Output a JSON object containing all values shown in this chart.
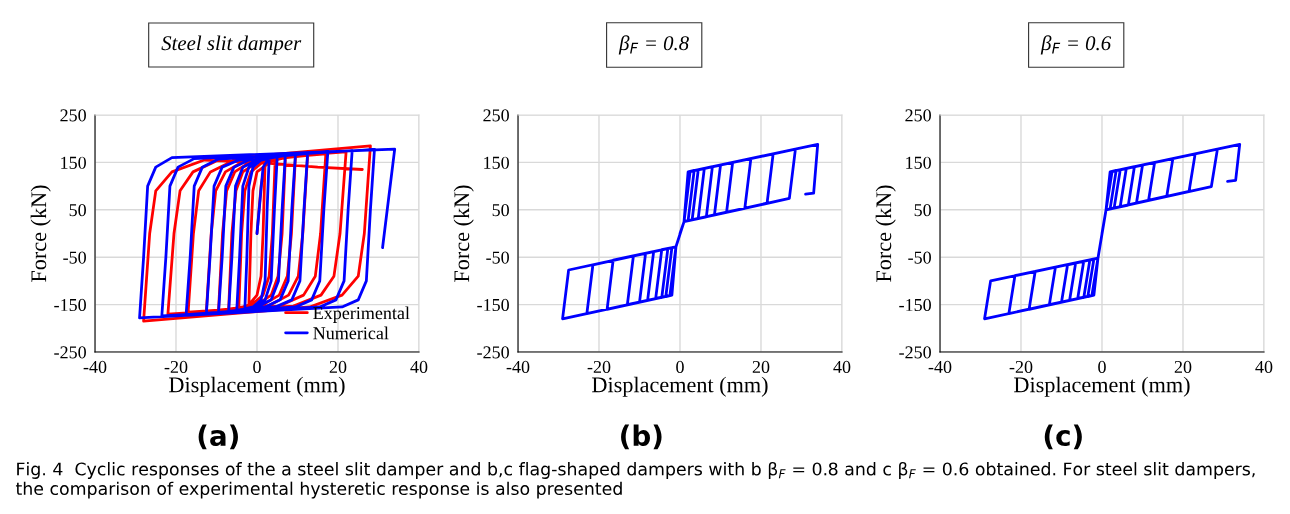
{
  "chart_data": [
    {
      "type": "line",
      "title": "Steel slit damper",
      "xlabel": "Displacement (mm)",
      "ylabel": "Force (kN)",
      "xlim": [
        -40,
        40
      ],
      "xticks": [
        -40,
        -20,
        0,
        20,
        40
      ],
      "ylim": [
        -250,
        250
      ],
      "yticks": [
        -250,
        -150,
        -50,
        50,
        150,
        250
      ],
      "grid": true,
      "legend": "bottom right",
      "line_style": "solid",
      "annotations": [
        "(a)",
        "Fig. 4  Cyclic responses of the a steel slit damper and b,c flag-shaped dampers with b β$_{F}$ = 0.8 and c β$_{F}$ = 0.6 obtained. For steel slit dampers, the comparison of experimental hysteretic response is also presented"
      ],
      "series": [
        {
          "name": "Experimental",
          "color": "#ff0000",
          "x": [
            0,
            1,
            2,
            1.5,
            1,
            0,
            -2,
            -1.5,
            -1,
            0,
            4.5,
            3.8,
            3,
            1.5,
            -1,
            -4.5,
            -3.8,
            -3,
            -1.5,
            1,
            7,
            6.2,
            5.2,
            3.5,
            0,
            -7,
            -6.2,
            -5.2,
            -3.5,
            0,
            9.5,
            8.5,
            7.5,
            5.5,
            1.5,
            -9.5,
            -8.5,
            -7.5,
            -5.5,
            -1.5,
            12.5,
            11.3,
            10.2,
            7.8,
            3,
            -12.5,
            -11.3,
            -10.2,
            -7.8,
            -3,
            17,
            15.7,
            14.4,
            11.5,
            5.5,
            -17,
            -15.7,
            -14.4,
            -11.5,
            -5.5,
            22,
            20.5,
            19,
            15.8,
            9,
            -22,
            -20.5,
            -19,
            -15.8,
            -9,
            28,
            26.5,
            25,
            21,
            13,
            -28,
            -26.5,
            -25,
            -21,
            -13,
            0,
            15,
            26
          ],
          "values": [
            0,
            100,
            150,
            0,
            -90,
            -130,
            -150,
            0,
            90,
            130,
            158,
            0,
            -90,
            -130,
            -148,
            -158,
            0,
            90,
            130,
            148,
            160,
            0,
            -90,
            -130,
            -150,
            -160,
            0,
            90,
            130,
            150,
            163,
            0,
            -90,
            -130,
            -150,
            -162,
            0,
            90,
            130,
            152,
            165,
            0,
            -90,
            -130,
            -152,
            -164,
            0,
            90,
            130,
            154,
            168,
            0,
            -90,
            -130,
            -153,
            -166,
            0,
            90,
            130,
            155,
            172,
            0,
            -90,
            -130,
            -153,
            -170,
            0,
            90,
            130,
            157,
            185,
            0,
            -90,
            -130,
            -155,
            -185,
            0,
            90,
            130,
            155,
            150,
            140,
            135
          ]
        },
        {
          "name": "Numerical",
          "color": "#0000ff",
          "x": [
            0,
            1.5,
            3,
            2.5,
            2,
            1,
            -1,
            -3,
            -2.5,
            -2,
            -1,
            1,
            5,
            4.3,
            3.5,
            2,
            -1,
            -5,
            -4.3,
            -3.5,
            -2,
            1,
            7,
            6.2,
            5.3,
            3.5,
            0,
            -7,
            -6.2,
            -5.3,
            -3.5,
            0,
            9.5,
            8.6,
            7.7,
            5.7,
            2,
            -9.5,
            -8.6,
            -7.7,
            -5.7,
            -2,
            12.5,
            11.6,
            10.6,
            8.6,
            4.5,
            -12.5,
            -11.6,
            -10.6,
            -8.6,
            -4.5,
            17.5,
            16.5,
            15.5,
            13.5,
            9.5,
            -17.5,
            -16.5,
            -15.5,
            -13.5,
            -9.5,
            23.5,
            22.5,
            21.5,
            19.5,
            15.5,
            -23.5,
            -22.5,
            -21.5,
            -19.5,
            -15.5,
            29,
            28,
            27,
            25,
            21,
            -29,
            -28,
            -27,
            -25,
            -21,
            34,
            31
          ],
          "values": [
            0,
            140,
            160,
            50,
            -100,
            -140,
            -155,
            -160,
            -50,
            100,
            140,
            155,
            163,
            50,
            -100,
            -140,
            -155,
            -163,
            -50,
            100,
            140,
            155,
            166,
            50,
            -100,
            -140,
            -155,
            -165,
            -50,
            100,
            140,
            155,
            168,
            50,
            -100,
            -140,
            -155,
            -167,
            -50,
            100,
            140,
            155,
            170,
            50,
            -100,
            -140,
            -155,
            -169,
            -50,
            100,
            140,
            155,
            173,
            50,
            -100,
            -140,
            -155,
            -171,
            -50,
            100,
            140,
            157,
            175,
            50,
            -100,
            -140,
            -155,
            -174,
            -50,
            100,
            140,
            158,
            177,
            50,
            -100,
            -140,
            -155,
            -178,
            -50,
            100,
            140,
            160,
            178,
            -30
          ]
        }
      ]
    },
    {
      "type": "line",
      "title": "β$_{F}$ = 0.8",
      "xlabel": "Displacement (mm)",
      "ylabel": "Force (kN)",
      "xlim": [
        -40,
        40
      ],
      "xticks": [
        -40,
        -20,
        0,
        20,
        40
      ],
      "ylim": [
        -250,
        250
      ],
      "yticks": [
        -250,
        -150,
        -50,
        50,
        150,
        250
      ],
      "grid": true,
      "line_style": "solid",
      "annotations": [
        "(b)"
      ],
      "series": [
        {
          "color": "#0000ff",
          "x": [
            0,
            1,
            2,
            2.5,
            1,
            1,
            -1,
            -2,
            -2.5,
            -1,
            -1,
            1,
            2,
            3.5,
            2,
            1,
            -1,
            -2,
            -3.5,
            -2,
            -1,
            1,
            2,
            4.5,
            3,
            1,
            -1,
            -2,
            -4.5,
            -3,
            -1,
            1,
            2,
            6,
            4.5,
            1,
            -1,
            -2,
            -6,
            -4.5,
            -1,
            1,
            2,
            8,
            6.5,
            1,
            -1,
            -2,
            -8,
            -6.5,
            -1,
            1,
            2,
            10,
            8.5,
            1,
            -1,
            -2,
            -10,
            -8.5,
            -1,
            1,
            2,
            13,
            11.5,
            1,
            -1,
            -2,
            -13,
            -11.5,
            -1,
            1,
            2,
            17.5,
            16,
            1,
            -1,
            -2,
            -18,
            -16.5,
            -1,
            1,
            2,
            23,
            21.5,
            1,
            -1,
            -2,
            -23,
            -21.5,
            -1,
            1,
            2,
            28.5,
            27,
            1,
            -1,
            -2,
            -29,
            -27.5,
            -1,
            1,
            2,
            34,
            33,
            31
          ],
          "values": [
            0,
            25,
            130,
            131,
            25,
            25,
            -28,
            -130,
            -131,
            -28,
            -28,
            25,
            130,
            133,
            27,
            25,
            -28,
            -130,
            -133,
            -30,
            -28,
            25,
            130,
            134,
            29,
            25,
            -28,
            -130,
            -135,
            -32,
            -28,
            25,
            130,
            137,
            32,
            25,
            -28,
            -130,
            -137,
            -34,
            -28,
            25,
            130,
            141,
            35,
            25,
            -28,
            -130,
            -141,
            -38,
            -28,
            25,
            130,
            144,
            39,
            25,
            -28,
            -130,
            -145,
            -42,
            -28,
            25,
            130,
            150,
            45,
            25,
            -28,
            -130,
            -150,
            -47,
            -28,
            25,
            130,
            158,
            53,
            25,
            -28,
            -130,
            -160,
            -56,
            -28,
            25,
            130,
            168,
            64,
            25,
            -28,
            -130,
            -169,
            -66,
            -28,
            25,
            130,
            178,
            74,
            25,
            -28,
            -130,
            -180,
            -77,
            -28,
            25,
            130,
            188,
            85,
            83
          ]
        }
      ]
    },
    {
      "type": "line",
      "title": "β$_{F}$ = 0.6",
      "xlabel": "Displacement (mm)",
      "ylabel": "Force (kN)",
      "xlim": [
        -40,
        40
      ],
      "xticks": [
        -40,
        -20,
        0,
        20,
        40
      ],
      "ylim": [
        -250,
        250
      ],
      "yticks": [
        -250,
        -150,
        -50,
        50,
        150,
        250
      ],
      "grid": true,
      "line_style": "solid",
      "annotations": [
        "(c)"
      ],
      "series": [
        {
          "color": "#0000ff",
          "x": [
            0,
            1,
            2,
            2.5,
            1,
            1,
            -1,
            -2,
            -2.5,
            -1,
            -1,
            1,
            2,
            3.5,
            2,
            1,
            -1,
            -2,
            -3.5,
            -2,
            -1,
            1,
            2,
            4.5,
            3,
            1,
            -1,
            -2,
            -4.5,
            -3,
            -1,
            1,
            2,
            6,
            4.5,
            1,
            -1,
            -2,
            -6,
            -4.5,
            -1,
            1,
            2,
            8,
            6.5,
            1,
            -1,
            -2,
            -8,
            -6.5,
            -1,
            1,
            2,
            10,
            8.5,
            1,
            -1,
            -2,
            -10,
            -8.5,
            -1,
            1,
            2,
            13,
            11.5,
            1,
            -1,
            -2,
            -13,
            -11.5,
            -1,
            1,
            2,
            17.5,
            16,
            1,
            -1,
            -2,
            -18,
            -16.5,
            -1,
            1,
            2,
            23,
            21.5,
            1,
            -1,
            -2,
            -23,
            -21.5,
            -1,
            1,
            2,
            28.5,
            27,
            1,
            -1,
            -2,
            -29,
            -27.5,
            -1,
            1,
            2,
            34,
            33,
            31
          ],
          "values": [
            0,
            50,
            130,
            131,
            50,
            50,
            -52,
            -130,
            -131,
            -52,
            -52,
            50,
            130,
            133,
            52,
            50,
            -52,
            -130,
            -133,
            -54,
            -52,
            50,
            130,
            134,
            54,
            50,
            -52,
            -130,
            -135,
            -56,
            -52,
            50,
            130,
            137,
            57,
            50,
            -52,
            -130,
            -137,
            -58,
            -52,
            50,
            130,
            141,
            60,
            50,
            -52,
            -130,
            -141,
            -62,
            -52,
            50,
            130,
            144,
            64,
            50,
            -52,
            -130,
            -145,
            -66,
            -52,
            50,
            130,
            150,
            70,
            50,
            -52,
            -130,
            -150,
            -71,
            -52,
            50,
            130,
            158,
            79,
            50,
            -52,
            -130,
            -160,
            -80,
            -52,
            50,
            130,
            168,
            89,
            50,
            -52,
            -130,
            -169,
            -89,
            -52,
            50,
            130,
            178,
            99,
            50,
            -52,
            -130,
            -180,
            -100,
            -52,
            50,
            130,
            188,
            112,
            110
          ]
        }
      ]
    }
  ]
}
